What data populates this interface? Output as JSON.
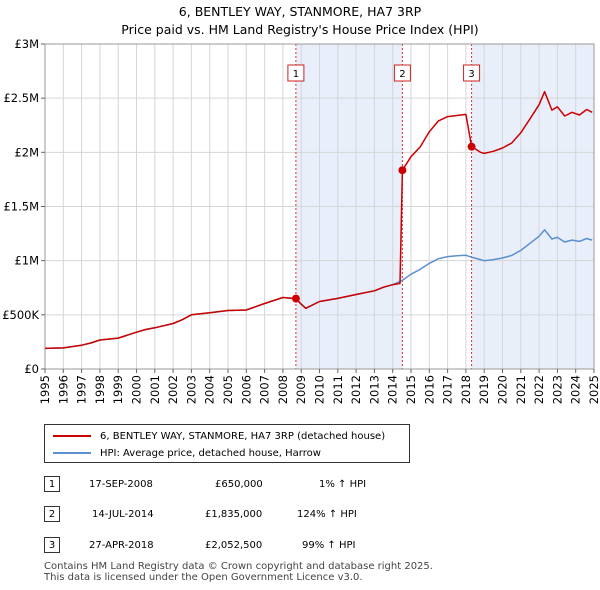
{
  "title_line1": "6, BENTLEY WAY, STANMORE, HA7 3RP",
  "title_line2": "Price paid vs. HM Land Registry's House Price Index (HPI)",
  "chart_data": {
    "type": "line",
    "x_start": 1995,
    "x_end": 2025,
    "xlim": [
      1995,
      2025
    ],
    "ylim": [
      0,
      3000000
    ],
    "y_ticks": [
      {
        "value": 0,
        "label": "£0"
      },
      {
        "value": 500000,
        "label": "£500K"
      },
      {
        "value": 1000000,
        "label": "£1M"
      },
      {
        "value": 1500000,
        "label": "£1.5M"
      },
      {
        "value": 2000000,
        "label": "£2M"
      },
      {
        "value": 2500000,
        "label": "£2.5M"
      },
      {
        "value": 3000000,
        "label": "£3M"
      }
    ],
    "x_ticks": [
      "1995",
      "1996",
      "1997",
      "1998",
      "1999",
      "2000",
      "2001",
      "2002",
      "2003",
      "2004",
      "2005",
      "2006",
      "2007",
      "2008",
      "2009",
      "2010",
      "2011",
      "2012",
      "2013",
      "2014",
      "2015",
      "2016",
      "2017",
      "2018",
      "2019",
      "2020",
      "2021",
      "2022",
      "2023",
      "2024",
      "2025"
    ],
    "series": [
      {
        "name": "6, BENTLEY WAY, STANMORE, HA7 3RP (detached house)",
        "color": "#cc0000",
        "points": [
          [
            1995.0,
            190000
          ],
          [
            1996.0,
            195000
          ],
          [
            1997.0,
            220000
          ],
          [
            1997.5,
            240000
          ],
          [
            1998.0,
            268000
          ],
          [
            1999.0,
            285000
          ],
          [
            2000.0,
            340000
          ],
          [
            2000.5,
            365000
          ],
          [
            2001.0,
            380000
          ],
          [
            2002.0,
            420000
          ],
          [
            2002.5,
            455000
          ],
          [
            2003.0,
            500000
          ],
          [
            2004.0,
            520000
          ],
          [
            2005.0,
            540000
          ],
          [
            2006.0,
            545000
          ],
          [
            2007.0,
            605000
          ],
          [
            2008.0,
            660000
          ],
          [
            2008.71,
            650000
          ],
          [
            2009.0,
            598000
          ],
          [
            2009.25,
            560000
          ],
          [
            2010.0,
            623000
          ],
          [
            2011.0,
            652000
          ],
          [
            2012.0,
            688000
          ],
          [
            2013.0,
            722000
          ],
          [
            2013.5,
            755000
          ],
          [
            2014.0,
            778000
          ],
          [
            2014.4,
            790000
          ],
          [
            2014.53,
            1835000
          ],
          [
            2015.0,
            1960000
          ],
          [
            2015.5,
            2050000
          ],
          [
            2016.0,
            2190000
          ],
          [
            2016.5,
            2290000
          ],
          [
            2017.0,
            2330000
          ],
          [
            2017.5,
            2340000
          ],
          [
            2018.0,
            2350000
          ],
          [
            2018.31,
            2052500
          ],
          [
            2018.8,
            2000000
          ],
          [
            2019.0,
            1990000
          ],
          [
            2019.5,
            2010000
          ],
          [
            2020.0,
            2040000
          ],
          [
            2020.5,
            2085000
          ],
          [
            2021.0,
            2180000
          ],
          [
            2021.5,
            2310000
          ],
          [
            2022.0,
            2440000
          ],
          [
            2022.3,
            2560000
          ],
          [
            2022.7,
            2390000
          ],
          [
            2023.0,
            2420000
          ],
          [
            2023.4,
            2335000
          ],
          [
            2023.8,
            2370000
          ],
          [
            2024.2,
            2345000
          ],
          [
            2024.6,
            2395000
          ],
          [
            2024.9,
            2370000
          ]
        ]
      },
      {
        "name": "HPI: Average price, detached house, Harrow",
        "color": "#5b8fcf",
        "points": [
          [
            1995.0,
            190000
          ],
          [
            1996.0,
            195000
          ],
          [
            1997.0,
            220000
          ],
          [
            1997.5,
            240000
          ],
          [
            1998.0,
            268000
          ],
          [
            1999.0,
            285000
          ],
          [
            2000.0,
            340000
          ],
          [
            2000.5,
            365000
          ],
          [
            2001.0,
            380000
          ],
          [
            2002.0,
            420000
          ],
          [
            2002.5,
            455000
          ],
          [
            2003.0,
            500000
          ],
          [
            2004.0,
            520000
          ],
          [
            2005.0,
            540000
          ],
          [
            2006.0,
            545000
          ],
          [
            2007.0,
            605000
          ],
          [
            2008.0,
            660000
          ],
          [
            2008.71,
            650000
          ],
          [
            2009.0,
            598000
          ],
          [
            2009.25,
            560000
          ],
          [
            2010.0,
            623000
          ],
          [
            2011.0,
            652000
          ],
          [
            2012.0,
            688000
          ],
          [
            2013.0,
            722000
          ],
          [
            2013.5,
            755000
          ],
          [
            2014.0,
            778000
          ],
          [
            2014.53,
            818000
          ],
          [
            2015.0,
            875000
          ],
          [
            2015.5,
            920000
          ],
          [
            2016.0,
            975000
          ],
          [
            2016.5,
            1018000
          ],
          [
            2017.0,
            1038000
          ],
          [
            2017.5,
            1045000
          ],
          [
            2018.0,
            1050000
          ],
          [
            2018.31,
            1032000
          ],
          [
            2018.8,
            1010000
          ],
          [
            2019.0,
            1000000
          ],
          [
            2019.5,
            1010000
          ],
          [
            2020.0,
            1025000
          ],
          [
            2020.5,
            1048000
          ],
          [
            2021.0,
            1095000
          ],
          [
            2021.5,
            1160000
          ],
          [
            2022.0,
            1225000
          ],
          [
            2022.3,
            1285000
          ],
          [
            2022.7,
            1200000
          ],
          [
            2023.0,
            1215000
          ],
          [
            2023.4,
            1172000
          ],
          [
            2023.8,
            1190000
          ],
          [
            2024.2,
            1178000
          ],
          [
            2024.6,
            1205000
          ],
          [
            2024.9,
            1190000
          ]
        ]
      }
    ],
    "sales": [
      {
        "label": "1",
        "date": "17-SEP-2008",
        "x": 2008.71,
        "price": 650000,
        "price_text": "£650,000",
        "hpi": "1% ↑ HPI"
      },
      {
        "label": "2",
        "date": "14-JUL-2014",
        "x": 2014.53,
        "price": 1835000,
        "price_text": "£1,835,000",
        "hpi": "124% ↑ HPI"
      },
      {
        "label": "3",
        "date": "27-APR-2018",
        "x": 2018.31,
        "price": 2052500,
        "price_text": "£2,052,500",
        "hpi": "99% ↑ HPI"
      }
    ],
    "shaded_ranges": [
      [
        2008.71,
        2014.53
      ],
      [
        2018.31,
        2025
      ]
    ],
    "colors": {
      "price": "#cc0000",
      "hpi": "#5b8fcf",
      "shade": "#e8eefa",
      "grid": "#d6d6d6"
    }
  },
  "legend": {
    "price_label": "6, BENTLEY WAY, STANMORE, HA7 3RP (detached house)",
    "hpi_label": "HPI: Average price, detached house, Harrow"
  },
  "transactions": [
    {
      "num": "1",
      "date": "17-SEP-2008",
      "price": "£650,000",
      "hpi": "1% ↑ HPI"
    },
    {
      "num": "2",
      "date": "14-JUL-2014",
      "price": "£1,835,000",
      "hpi": "124% ↑ HPI"
    },
    {
      "num": "3",
      "date": "27-APR-2018",
      "price": "£2,052,500",
      "hpi": "99% ↑ HPI"
    }
  ],
  "footer": {
    "line1": "Contains HM Land Registry data © Crown copyright and database right 2025.",
    "line2": "This data is licensed under the Open Government Licence v3.0."
  }
}
